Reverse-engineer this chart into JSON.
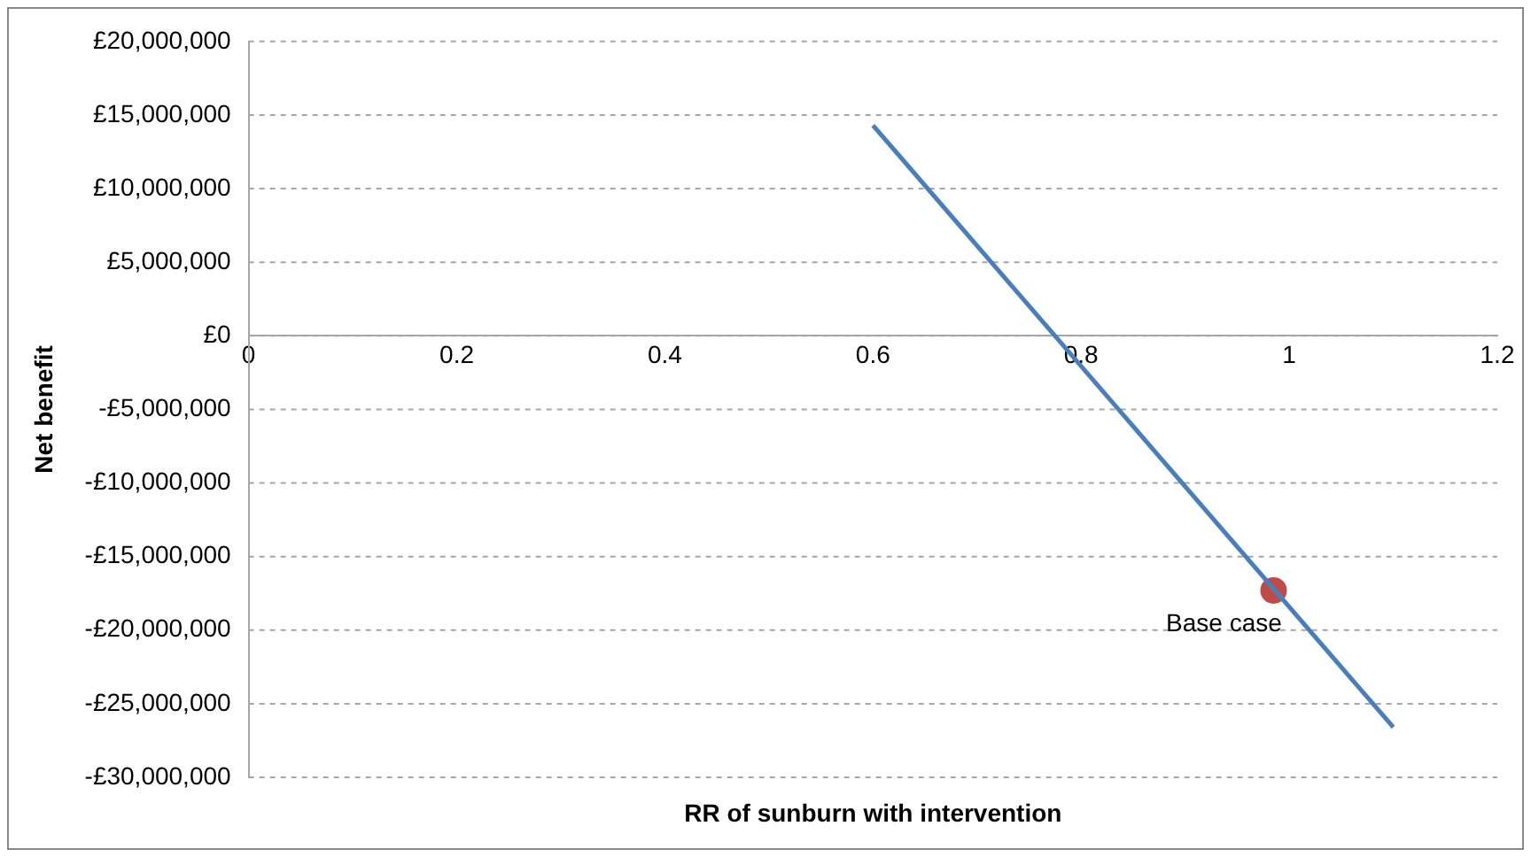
{
  "chart_data": {
    "type": "line",
    "xlabel": "RR of sunburn with intervention",
    "ylabel": "Net benefit",
    "xlim": [
      0,
      1.2
    ],
    "xticks": [
      0,
      0.2,
      0.4,
      0.6,
      0.8,
      1,
      1.2
    ],
    "ylim": [
      -30000000,
      20000000
    ],
    "yticks": [
      {
        "value": -30000000,
        "label": "-£30,000,000"
      },
      {
        "value": -25000000,
        "label": "-£25,000,000"
      },
      {
        "value": -20000000,
        "label": "-£20,000,000"
      },
      {
        "value": -15000000,
        "label": "-£15,000,000"
      },
      {
        "value": -10000000,
        "label": "-£10,000,000"
      },
      {
        "value": -5000000,
        "label": "-£5,000,000"
      },
      {
        "value": 0,
        "label": "£0"
      },
      {
        "value": 5000000,
        "label": "£5,000,000"
      },
      {
        "value": 10000000,
        "label": "£10,000,000"
      },
      {
        "value": 15000000,
        "label": "£15,000,000"
      },
      {
        "value": 20000000,
        "label": "£20,000,000"
      }
    ],
    "grid": "y",
    "legend": false,
    "series": [
      {
        "color": "#4a7ebb",
        "marker": "none",
        "x": [
          0.6,
          1.1
        ],
        "values": [
          14300000,
          -26600000
        ]
      },
      {
        "type": "scatter",
        "color": "#be4b48",
        "marker": "circle",
        "x": [
          0.985
        ],
        "values": [
          -17300000
        ]
      }
    ],
    "annotations": [
      {
        "text": "Base case",
        "x": 0.985,
        "y": -17300000
      }
    ]
  }
}
